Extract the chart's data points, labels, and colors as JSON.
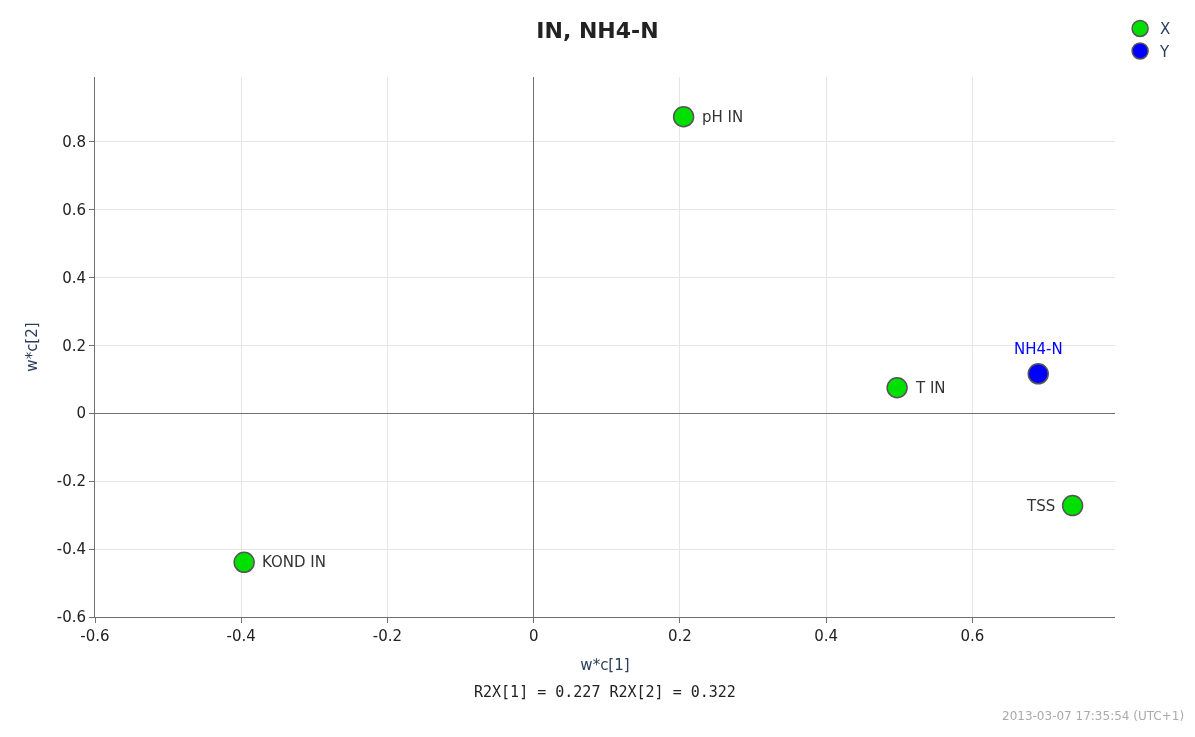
{
  "chart_data": {
    "type": "scatter",
    "title": "IN, NH4-N",
    "xlabel": "w*c[1]",
    "ylabel": "w*c[2]",
    "series": [
      {
        "name": "X",
        "color": "#00e000",
        "x": [
          0.205,
          0.497,
          0.737,
          -0.396
        ],
        "values": [
          0.873,
          0.075,
          -0.272,
          -0.439
        ]
      },
      {
        "name": "Y",
        "color": "#0000ff",
        "x": [
          0.69
        ],
        "values": [
          0.116
        ]
      }
    ],
    "xlim": [
      -0.6,
      0.795
    ],
    "ylim": [
      -0.6,
      0.99
    ],
    "xticks": [
      -0.6,
      -0.4,
      -0.2,
      0,
      0.2,
      0.4,
      0.6
    ],
    "yticks": [
      -0.6,
      -0.4,
      -0.2,
      0,
      0.2,
      0.4,
      0.6,
      0.8
    ],
    "grid": true,
    "legend": "top right",
    "marker": "circle",
    "annotations": [
      {
        "text": "pH IN",
        "x": 0.205,
        "y": 0.873
      },
      {
        "text": "T IN",
        "x": 0.497,
        "y": 0.075
      },
      {
        "text": "NH4-N",
        "x": 0.69,
        "y": 0.116
      },
      {
        "text": "TSS",
        "x": 0.737,
        "y": -0.272
      },
      {
        "text": "KOND IN",
        "x": -0.396,
        "y": -0.439
      },
      "R2X[1] = 0.227 R2X[2] = 0.322",
      "2013-03-07 17:35:54 (UTC+1)"
    ]
  }
}
